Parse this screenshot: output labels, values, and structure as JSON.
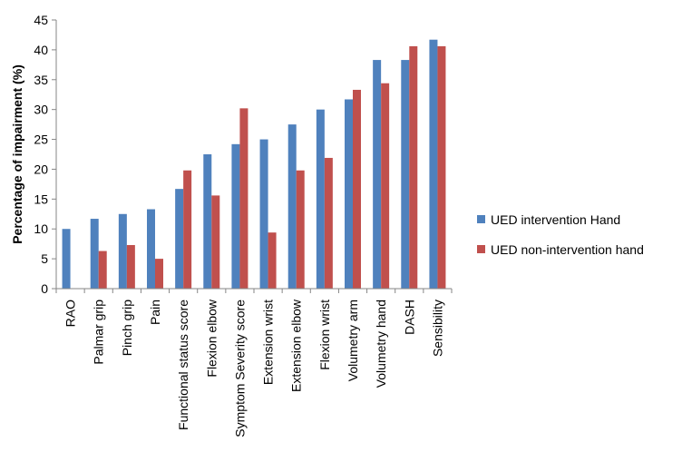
{
  "chart_data": {
    "type": "bar",
    "title": "",
    "xlabel": "",
    "ylabel": "Percentage of impairment (%)",
    "ylim": [
      0,
      45
    ],
    "yticks": [
      0,
      5,
      10,
      15,
      20,
      25,
      30,
      35,
      40,
      45
    ],
    "ytick_labels": [
      "0",
      "5",
      "10",
      "15",
      "20",
      "25",
      "30",
      "35",
      "40",
      "45"
    ],
    "grid": false,
    "legend_position": "right",
    "categories": [
      "RAO",
      "Palmar grip",
      "Pinch grip",
      "Pain",
      "Functional status score",
      "Flexion elbow",
      "Symptom Severity score",
      "Extension wrist",
      "Extension elbow",
      "Flexion wrist",
      "Volumetry arm",
      "Volumetry hand",
      "DASH",
      "Sensibility"
    ],
    "series": [
      {
        "name": "UED intervention Hand",
        "color": "#4F81BD",
        "values": [
          10.0,
          11.7,
          12.5,
          13.3,
          16.7,
          22.5,
          24.2,
          25.0,
          27.5,
          30.0,
          31.7,
          38.3,
          38.3,
          41.7
        ]
      },
      {
        "name": "UED non-intervention hand",
        "color": "#C0504D",
        "values": [
          0,
          6.3,
          7.3,
          5.0,
          19.8,
          15.6,
          30.2,
          9.4,
          19.8,
          21.9,
          33.3,
          34.4,
          40.6,
          40.6
        ]
      }
    ]
  }
}
